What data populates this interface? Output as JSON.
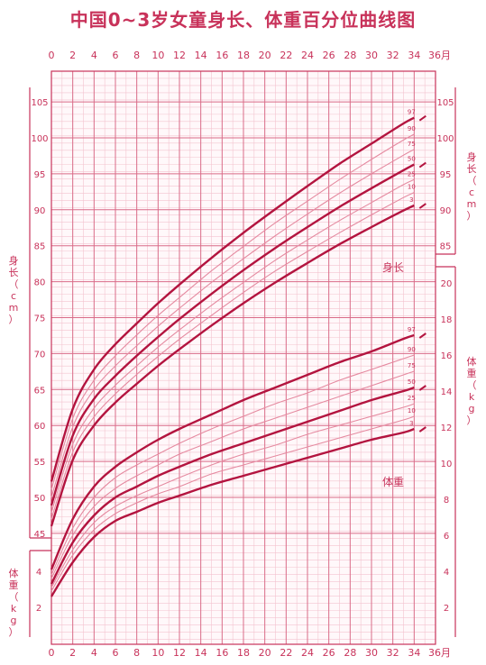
{
  "page": {
    "title": "中国0~3岁女童身长、体重百分位曲线图"
  },
  "chart_data": {
    "type": "line",
    "title": "中国0~3岁女童身长、体重百分位曲线图",
    "x": {
      "unit_label": "36月",
      "range": [
        0,
        36
      ],
      "ticks": [
        "0",
        "2",
        "4",
        "6",
        "8",
        "10",
        "12",
        "14",
        "16",
        "18",
        "20",
        "22",
        "24",
        "26",
        "28",
        "30",
        "32",
        "34"
      ],
      "tick_values": [
        0,
        2,
        4,
        6,
        8,
        10,
        12,
        14,
        16,
        18,
        20,
        22,
        24,
        26,
        28,
        30,
        32,
        34
      ]
    },
    "axes": {
      "length_left": {
        "label": "身长（cm）",
        "range": [
          45,
          105
        ],
        "ticks": [
          "45",
          "50",
          "55",
          "60",
          "65",
          "70",
          "75",
          "80",
          "85",
          "90",
          "95",
          "100",
          "105"
        ]
      },
      "length_right": {
        "label": "身长（cm）",
        "range": [
          85,
          105
        ],
        "ticks": [
          "85",
          "90",
          "95",
          "100",
          "105"
        ]
      },
      "weight_left": {
        "label": "体重（kg）",
        "range": [
          2,
          4
        ],
        "ticks": [
          "2",
          "4"
        ]
      },
      "weight_right": {
        "label": "体重（kg）",
        "range": [
          2,
          20
        ],
        "ticks": [
          "2",
          "4",
          "6",
          "8",
          "10",
          "12",
          "14",
          "16",
          "18",
          "20"
        ]
      }
    },
    "group_labels": {
      "length": "身长",
      "weight": "体重"
    },
    "percentile_labels": [
      "97",
      "90",
      "75",
      "50",
      "25",
      "10",
      "3"
    ],
    "months": [
      0,
      2,
      4,
      6,
      8,
      10,
      12,
      15,
      18,
      21,
      24,
      27,
      30,
      33,
      34
    ],
    "length_series": [
      {
        "name": "97",
        "bold": true,
        "values": [
          52.2,
          62.3,
          67.8,
          71.3,
          74.2,
          77.0,
          79.6,
          83.3,
          86.8,
          90.1,
          93.3,
          96.4,
          99.2,
          102.0,
          102.8
        ]
      },
      {
        "name": "90",
        "bold": false,
        "values": [
          51.1,
          61.0,
          66.3,
          69.7,
          72.6,
          75.3,
          77.8,
          81.5,
          84.9,
          88.2,
          91.2,
          94.2,
          97.0,
          99.7,
          100.5
        ]
      },
      {
        "name": "75",
        "bold": false,
        "values": [
          50.0,
          59.8,
          65.0,
          68.3,
          71.1,
          73.8,
          76.3,
          79.9,
          83.2,
          86.4,
          89.4,
          92.3,
          95.0,
          97.6,
          98.4
        ]
      },
      {
        "name": "50",
        "bold": true,
        "values": [
          48.9,
          58.6,
          63.7,
          66.9,
          69.7,
          72.3,
          74.8,
          78.3,
          81.6,
          84.7,
          87.6,
          90.4,
          93.0,
          95.5,
          96.3
        ]
      },
      {
        "name": "25",
        "bold": false,
        "values": [
          47.9,
          57.4,
          62.4,
          65.6,
          68.3,
          70.9,
          73.3,
          76.7,
          79.9,
          83.0,
          85.8,
          88.5,
          91.0,
          93.5,
          94.2
        ]
      },
      {
        "name": "10",
        "bold": false,
        "values": [
          47.0,
          56.3,
          61.2,
          64.4,
          67.1,
          69.6,
          72.0,
          75.3,
          78.5,
          81.5,
          84.2,
          86.8,
          89.3,
          91.7,
          92.4
        ]
      },
      {
        "name": "3",
        "bold": true,
        "values": [
          46.0,
          55.2,
          60.0,
          63.2,
          65.8,
          68.3,
          70.6,
          73.9,
          77.0,
          79.9,
          82.6,
          85.2,
          87.6,
          89.9,
          90.6
        ]
      }
    ],
    "weight_series": [
      {
        "name": "97",
        "bold": true,
        "values": [
          4.1,
          6.9,
          8.7,
          9.8,
          10.6,
          11.3,
          11.9,
          12.7,
          13.5,
          14.2,
          14.9,
          15.6,
          16.2,
          16.9,
          17.1
        ]
      },
      {
        "name": "90",
        "bold": false,
        "values": [
          3.8,
          6.4,
          8.1,
          9.2,
          9.9,
          10.5,
          11.1,
          11.9,
          12.6,
          13.3,
          13.9,
          14.6,
          15.2,
          15.8,
          16.0
        ]
      },
      {
        "name": "75",
        "bold": false,
        "values": [
          3.6,
          6.0,
          7.6,
          8.6,
          9.3,
          9.9,
          10.5,
          11.2,
          11.9,
          12.5,
          13.1,
          13.7,
          14.3,
          14.9,
          15.1
        ]
      },
      {
        "name": "50",
        "bold": true,
        "values": [
          3.3,
          5.6,
          7.1,
          8.1,
          8.7,
          9.3,
          9.8,
          10.5,
          11.1,
          11.7,
          12.3,
          12.9,
          13.5,
          14.0,
          14.2
        ]
      },
      {
        "name": "25",
        "bold": false,
        "values": [
          3.1,
          5.2,
          6.7,
          7.6,
          8.2,
          8.7,
          9.2,
          9.9,
          10.5,
          11.0,
          11.6,
          12.1,
          12.6,
          13.1,
          13.3
        ]
      },
      {
        "name": "10",
        "bold": false,
        "values": [
          2.9,
          4.9,
          6.3,
          7.2,
          7.8,
          8.3,
          8.7,
          9.4,
          9.9,
          10.4,
          10.9,
          11.4,
          11.9,
          12.4,
          12.6
        ]
      },
      {
        "name": "3",
        "bold": true,
        "values": [
          2.6,
          4.5,
          5.9,
          6.8,
          7.3,
          7.8,
          8.2,
          8.8,
          9.3,
          9.8,
          10.3,
          10.8,
          11.3,
          11.7,
          11.9
        ]
      }
    ],
    "grid": true,
    "colors": {
      "accent": "#c8325a",
      "grid_major": "#d96b88",
      "grid_minor": "#f3c3cf",
      "curve_bold": "#b3143f",
      "curve_thin": "#e58aa0"
    }
  }
}
